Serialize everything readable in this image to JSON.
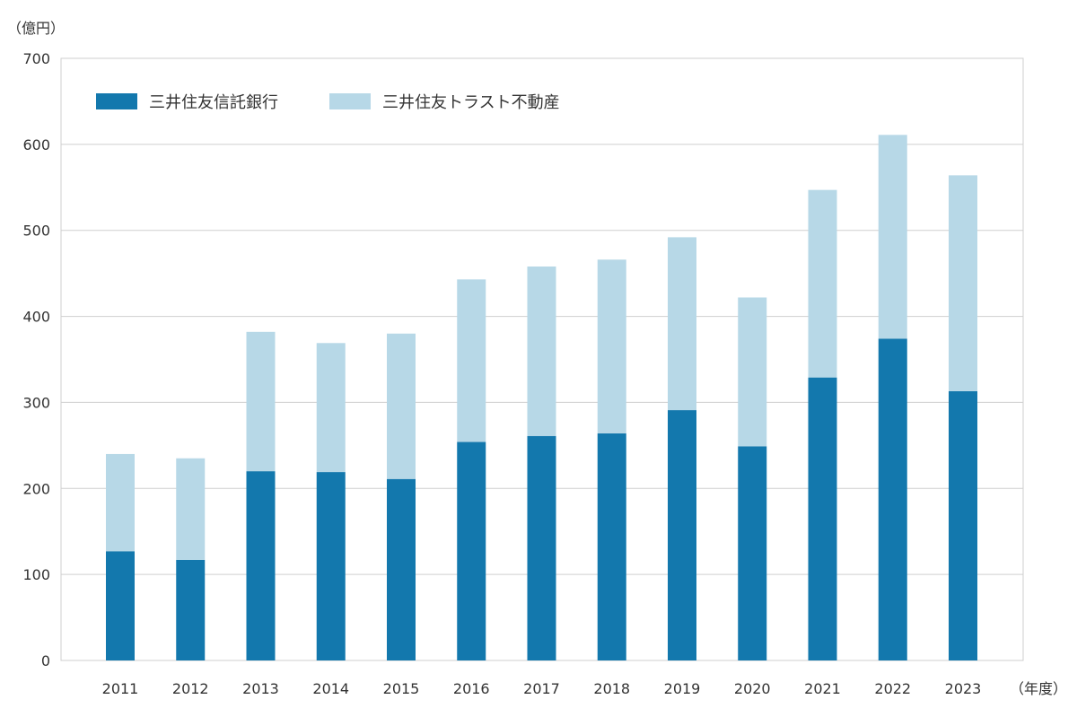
{
  "chart_data": {
    "type": "bar",
    "stacked": true,
    "title": "",
    "ylabel": "（億円）",
    "xlabel": "（年度）",
    "categories": [
      "2011",
      "2012",
      "2013",
      "2014",
      "2015",
      "2016",
      "2017",
      "2018",
      "2019",
      "2020",
      "2021",
      "2022",
      "2023"
    ],
    "series": [
      {
        "name": "三井住友信託銀行",
        "color": "#1378ad",
        "values": [
          127,
          117,
          220,
          219,
          211,
          254,
          261,
          264,
          291,
          249,
          329,
          374,
          313
        ]
      },
      {
        "name": "三井住友トラスト不動産",
        "color": "#b7d8e7",
        "values": [
          113,
          118,
          162,
          150,
          169,
          189,
          197,
          202,
          201,
          173,
          218,
          237,
          251
        ]
      }
    ],
    "ylim": [
      0,
      700
    ],
    "yticks": [
      0,
      100,
      200,
      300,
      400,
      500,
      600,
      700
    ],
    "grid": true,
    "legend_position": "top-left"
  }
}
